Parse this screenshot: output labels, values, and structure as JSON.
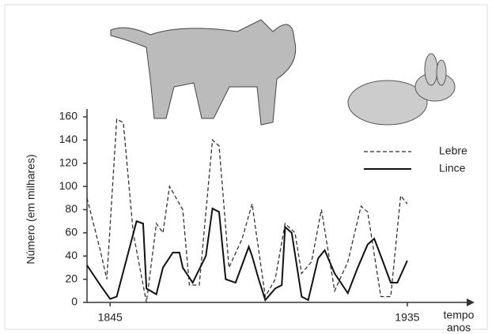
{
  "chart_data": {
    "type": "line",
    "ylabel": "Número (em milhares)",
    "xlabel": [
      "tempo",
      "anos"
    ],
    "xlim": [
      1838,
      1953
    ],
    "xticks": [
      1845,
      1935
    ],
    "ylim": [
      0,
      160
    ],
    "yticks": [
      0,
      20,
      40,
      60,
      80,
      100,
      120,
      140,
      160
    ],
    "legend": "right",
    "series": [
      {
        "name": "Lebre",
        "color": "#333333",
        "dash": true,
        "x": [
          1838,
          1842,
          1844,
          1847,
          1849,
          1852,
          1856,
          1859,
          1861,
          1863,
          1867,
          1869,
          1872,
          1876,
          1878,
          1881,
          1885,
          1888,
          1892,
          1895,
          1898,
          1901,
          1903,
          1906,
          1909,
          1913,
          1917,
          1921,
          1923,
          1927,
          1930,
          1933,
          1935
        ],
        "values": [
          90,
          45,
          20,
          158,
          155,
          60,
          0,
          68,
          60,
          100,
          80,
          15,
          15,
          140,
          135,
          30,
          55,
          85,
          5,
          20,
          68,
          60,
          25,
          35,
          80,
          10,
          35,
          83,
          78,
          5,
          5,
          92,
          85
        ]
      },
      {
        "name": "Lince",
        "color": "#111111",
        "dash": false,
        "x": [
          1838,
          1842,
          1845,
          1847,
          1853,
          1855,
          1856,
          1859,
          1861,
          1864,
          1866,
          1867,
          1870,
          1874,
          1876,
          1878,
          1880,
          1883,
          1887,
          1888,
          1890,
          1892,
          1895,
          1897,
          1898,
          1900,
          1903,
          1905,
          1908,
          1910,
          1913,
          1917,
          1920,
          1923,
          1925,
          1927,
          1930,
          1932,
          1935
        ],
        "values": [
          32,
          15,
          3,
          5,
          70,
          68,
          12,
          7,
          30,
          43,
          43,
          30,
          17,
          40,
          81,
          78,
          20,
          17,
          48,
          40,
          20,
          2,
          12,
          15,
          65,
          60,
          5,
          2,
          38,
          45,
          25,
          8,
          30,
          50,
          55,
          40,
          17,
          17,
          36
        ]
      }
    ]
  }
}
